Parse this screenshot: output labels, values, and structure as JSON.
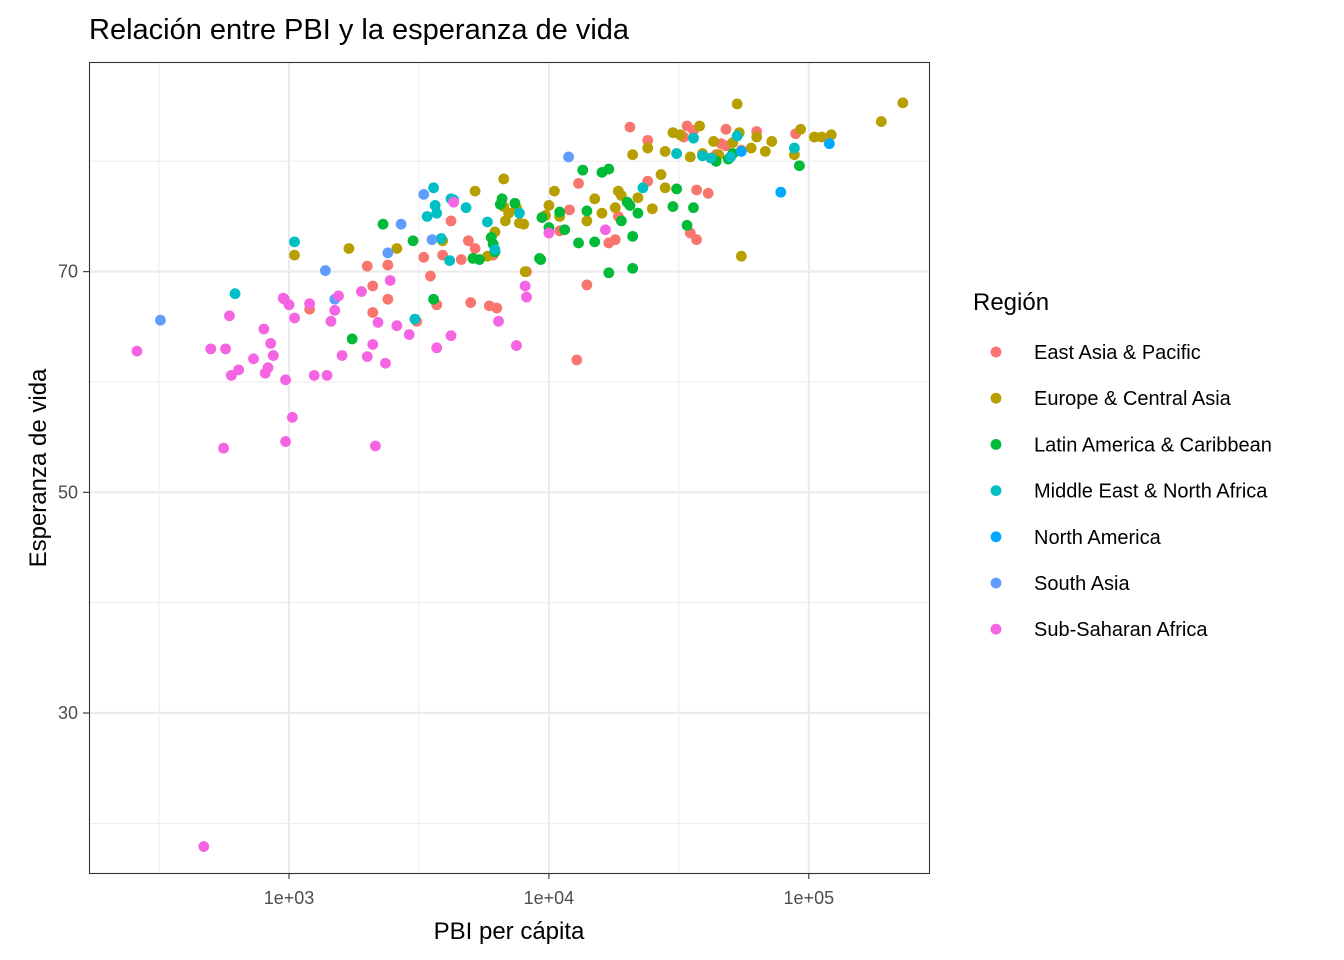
{
  "chart_data": {
    "type": "scatter",
    "title": "Relación entre  PBI y la esperanza de vida",
    "xlabel": "PBI per cápita",
    "ylabel": "Esperanza de vida",
    "x_scale": "log10",
    "xlim": [
      170,
      290000
    ],
    "ylim": [
      15.5,
      89
    ],
    "x_ticks": [
      {
        "value": 1000,
        "label": "1e+03"
      },
      {
        "value": 10000,
        "label": "1e+04"
      },
      {
        "value": 100000,
        "label": "1e+05"
      }
    ],
    "y_ticks": [
      {
        "value": 30,
        "label": "30"
      },
      {
        "value": 50,
        "label": "50"
      },
      {
        "value": 70,
        "label": "70"
      }
    ],
    "grid": true,
    "legend_title": "Región",
    "legend_position": "right",
    "series": [
      {
        "name": "East Asia & Pacific",
        "color": "#F8766D",
        "points": [
          [
            2000,
            70.5
          ],
          [
            2400,
            70.6
          ],
          [
            3300,
            71.3
          ],
          [
            3900,
            71.5
          ],
          [
            4600,
            71.1
          ],
          [
            4900,
            72.8
          ],
          [
            5200,
            72.1
          ],
          [
            6100,
            71.5
          ],
          [
            4200,
            74.6
          ],
          [
            5000,
            67.2
          ],
          [
            5900,
            66.9
          ],
          [
            6300,
            66.7
          ],
          [
            3500,
            69.6
          ],
          [
            2400,
            67.5
          ],
          [
            3100,
            65.5
          ],
          [
            2100,
            66.3
          ],
          [
            3700,
            67.0
          ],
          [
            2100,
            68.7
          ],
          [
            1200,
            66.6
          ],
          [
            8200,
            70.0
          ],
          [
            11000,
            73.7
          ],
          [
            12000,
            75.6
          ],
          [
            13000,
            78.0
          ],
          [
            14000,
            68.8
          ],
          [
            12800,
            62.0
          ],
          [
            17000,
            72.6
          ],
          [
            18000,
            72.9
          ],
          [
            18500,
            75.0
          ],
          [
            20500,
            83.1
          ],
          [
            24000,
            81.9
          ],
          [
            24000,
            78.2
          ],
          [
            33000,
            82.2
          ],
          [
            34000,
            83.2
          ],
          [
            36000,
            82.8
          ],
          [
            37000,
            72.9
          ],
          [
            37000,
            77.4
          ],
          [
            41000,
            77.1
          ],
          [
            44000,
            80.6
          ],
          [
            46000,
            81.6
          ],
          [
            48000,
            82.9
          ],
          [
            48000,
            81.4
          ],
          [
            55000,
            81.0
          ],
          [
            63000,
            82.7
          ],
          [
            89000,
            82.5
          ],
          [
            35000,
            73.5
          ]
        ]
      },
      {
        "name": "Europe & Central Asia",
        "color": "#B79F00",
        "points": [
          [
            1050,
            71.5
          ],
          [
            1700,
            72.1
          ],
          [
            2600,
            72.1
          ],
          [
            3900,
            72.8
          ],
          [
            5200,
            77.3
          ],
          [
            5800,
            71.4
          ],
          [
            6200,
            73.6
          ],
          [
            6700,
            75.9
          ],
          [
            6800,
            74.6
          ],
          [
            6700,
            78.4
          ],
          [
            7000,
            75.3
          ],
          [
            7500,
            75.8
          ],
          [
            7700,
            74.4
          ],
          [
            8000,
            74.3
          ],
          [
            8100,
            70.0
          ],
          [
            9700,
            75.1
          ],
          [
            10000,
            76.0
          ],
          [
            10500,
            77.3
          ],
          [
            11000,
            75.0
          ],
          [
            14000,
            74.6
          ],
          [
            15000,
            76.6
          ],
          [
            16000,
            75.3
          ],
          [
            18000,
            75.8
          ],
          [
            18500,
            77.3
          ],
          [
            19000,
            76.9
          ],
          [
            21000,
            80.6
          ],
          [
            22000,
            76.7
          ],
          [
            24000,
            81.2
          ],
          [
            25000,
            75.7
          ],
          [
            27000,
            78.8
          ],
          [
            28000,
            80.9
          ],
          [
            28000,
            77.6
          ],
          [
            30000,
            82.6
          ],
          [
            32000,
            82.4
          ],
          [
            35000,
            80.4
          ],
          [
            38000,
            83.2
          ],
          [
            39000,
            80.7
          ],
          [
            43000,
            81.8
          ],
          [
            45000,
            80.6
          ],
          [
            50000,
            80.4
          ],
          [
            51000,
            81.7
          ],
          [
            53000,
            85.2
          ],
          [
            54000,
            82.6
          ],
          [
            55000,
            71.4
          ],
          [
            60000,
            81.2
          ],
          [
            63000,
            82.2
          ],
          [
            68000,
            80.9
          ],
          [
            72000,
            81.8
          ],
          [
            88000,
            80.6
          ],
          [
            93000,
            82.9
          ],
          [
            105000,
            82.2
          ],
          [
            112000,
            82.2
          ],
          [
            122000,
            82.4
          ],
          [
            190000,
            83.6
          ],
          [
            230000,
            85.3
          ]
        ]
      },
      {
        "name": "Latin America & Caribbean",
        "color": "#00BA38",
        "points": [
          [
            1750,
            63.9
          ],
          [
            2300,
            74.3
          ],
          [
            3000,
            72.8
          ],
          [
            3600,
            67.5
          ],
          [
            5100,
            71.2
          ],
          [
            5400,
            71.1
          ],
          [
            6000,
            73.1
          ],
          [
            6100,
            72.5
          ],
          [
            6200,
            71.8
          ],
          [
            6500,
            76.1
          ],
          [
            6600,
            76.6
          ],
          [
            7400,
            76.2
          ],
          [
            9200,
            71.2
          ],
          [
            9300,
            71.1
          ],
          [
            9400,
            74.9
          ],
          [
            10000,
            74.0
          ],
          [
            11000,
            75.4
          ],
          [
            11500,
            73.8
          ],
          [
            13000,
            72.6
          ],
          [
            13500,
            79.2
          ],
          [
            14000,
            75.5
          ],
          [
            15000,
            72.7
          ],
          [
            16000,
            79.0
          ],
          [
            17000,
            79.3
          ],
          [
            17000,
            69.9
          ],
          [
            19000,
            74.6
          ],
          [
            20000,
            76.3
          ],
          [
            20500,
            76.0
          ],
          [
            21000,
            73.2
          ],
          [
            21000,
            70.3
          ],
          [
            22000,
            75.3
          ],
          [
            30000,
            75.9
          ],
          [
            31000,
            77.5
          ],
          [
            34000,
            74.2
          ],
          [
            36000,
            75.8
          ],
          [
            44000,
            80.0
          ],
          [
            49000,
            80.2
          ],
          [
            51000,
            80.7
          ],
          [
            92000,
            79.6
          ]
        ]
      },
      {
        "name": "Middle East & North Africa",
        "color": "#00BFC4",
        "points": [
          [
            1050,
            72.7
          ],
          [
            620,
            68.0
          ],
          [
            3050,
            65.7
          ],
          [
            3400,
            75.0
          ],
          [
            3600,
            77.6
          ],
          [
            3650,
            76.0
          ],
          [
            3700,
            75.3
          ],
          [
            3850,
            73.0
          ],
          [
            4150,
            71.0
          ],
          [
            4200,
            76.6
          ],
          [
            4300,
            76.5
          ],
          [
            4800,
            75.8
          ],
          [
            5800,
            74.5
          ],
          [
            6200,
            72.0
          ],
          [
            7700,
            75.3
          ],
          [
            23000,
            77.6
          ],
          [
            31000,
            80.7
          ],
          [
            36000,
            82.1
          ],
          [
            39000,
            80.5
          ],
          [
            42000,
            80.3
          ],
          [
            50000,
            80.4
          ],
          [
            53000,
            82.3
          ],
          [
            88000,
            81.2
          ]
        ]
      },
      {
        "name": "North America",
        "color": "#00A9FF",
        "points": [
          [
            55000,
            80.9
          ],
          [
            78000,
            77.2
          ],
          [
            120000,
            81.6
          ]
        ]
      },
      {
        "name": "South Asia",
        "color": "#619CFF",
        "points": [
          [
            320,
            65.6
          ],
          [
            1380,
            70.1
          ],
          [
            1500,
            67.5
          ],
          [
            2400,
            71.7
          ],
          [
            2700,
            74.3
          ],
          [
            3300,
            77.0
          ],
          [
            3550,
            72.9
          ],
          [
            11900,
            80.4
          ]
        ]
      },
      {
        "name": "Sub-Saharan Africa",
        "color": "#F564E3",
        "points": [
          [
            260,
            62.8
          ],
          [
            470,
            17.9
          ],
          [
            500,
            63.0
          ],
          [
            560,
            54.0
          ],
          [
            570,
            63.0
          ],
          [
            590,
            66.0
          ],
          [
            600,
            60.6
          ],
          [
            640,
            61.1
          ],
          [
            730,
            62.1
          ],
          [
            800,
            64.8
          ],
          [
            810,
            60.8
          ],
          [
            830,
            61.3
          ],
          [
            850,
            63.5
          ],
          [
            870,
            62.4
          ],
          [
            950,
            67.6
          ],
          [
            960,
            67.5
          ],
          [
            970,
            60.2
          ],
          [
            970,
            54.6
          ],
          [
            1000,
            67.0
          ],
          [
            1030,
            56.8
          ],
          [
            1050,
            65.8
          ],
          [
            1200,
            67.1
          ],
          [
            1250,
            60.6
          ],
          [
            1400,
            60.6
          ],
          [
            1450,
            65.5
          ],
          [
            1500,
            66.5
          ],
          [
            1550,
            67.8
          ],
          [
            1600,
            62.4
          ],
          [
            1900,
            68.2
          ],
          [
            2000,
            62.3
          ],
          [
            2100,
            63.4
          ],
          [
            2150,
            54.2
          ],
          [
            2200,
            65.4
          ],
          [
            2350,
            61.7
          ],
          [
            2450,
            69.2
          ],
          [
            2600,
            65.1
          ],
          [
            2900,
            64.3
          ],
          [
            3700,
            63.1
          ],
          [
            4200,
            64.2
          ],
          [
            4300,
            76.3
          ],
          [
            7500,
            63.3
          ],
          [
            8100,
            68.7
          ],
          [
            8200,
            67.7
          ],
          [
            10000,
            73.5
          ],
          [
            16500,
            73.8
          ],
          [
            6400,
            65.5
          ]
        ]
      }
    ]
  }
}
